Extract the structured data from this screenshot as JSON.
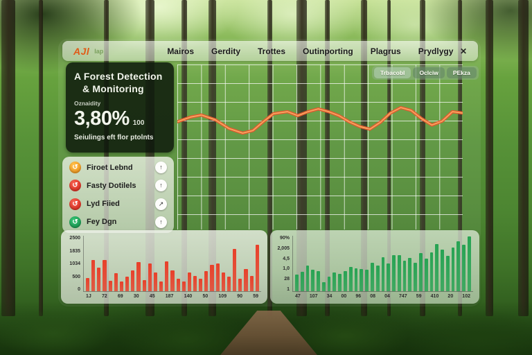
{
  "navbar": {
    "logo": "AJl",
    "logo_suffix": "Iap",
    "items": [
      "Mairos",
      "Gerdity",
      "Trottes",
      "Outinporting",
      "Plagrus",
      "Prydlygy"
    ],
    "close_label": "✕"
  },
  "info_panel": {
    "title_line1": "A Forest Detection",
    "title_line2": "& Monitoring",
    "metric_label": "Oznaidity",
    "metric_value": "3,80%",
    "metric_unit": "100",
    "subtext": "Seiulings eft flor ptolnts"
  },
  "legend": {
    "items": [
      {
        "label": "Firoet Lebnd",
        "color": "#ef8f12",
        "icon": "↺",
        "action": "↑"
      },
      {
        "label": "Fasty Dotilels",
        "color": "#d92318",
        "icon": "↺",
        "action": "↑"
      },
      {
        "label": "Lyd Fiied",
        "color": "#d92318",
        "icon": "↺",
        "action": "↗"
      },
      {
        "label": "Fey Dgn",
        "color": "#14904a",
        "icon": "↺",
        "action": "↑"
      }
    ]
  },
  "main_chart": {
    "buttons": [
      "Trbacobl",
      "Oclciw",
      "PEkza"
    ]
  },
  "chart_data": [
    {
      "id": "trend",
      "type": "line",
      "title": "",
      "color": "#e2582f",
      "highlight_color": "#f5a860",
      "grid": true,
      "legend_position": "none",
      "points": [
        [
          0,
          34.7
        ],
        [
          4.8,
          31.8
        ],
        [
          8.4,
          30.6
        ],
        [
          13.3,
          33.5
        ],
        [
          18.1,
          38.8
        ],
        [
          22.9,
          41.6
        ],
        [
          26.5,
          40.0
        ],
        [
          30.1,
          34.7
        ],
        [
          33.7,
          29.8
        ],
        [
          38.6,
          28.6
        ],
        [
          42.2,
          31.0
        ],
        [
          45.8,
          28.6
        ],
        [
          49.4,
          26.9
        ],
        [
          53.0,
          28.6
        ],
        [
          56.6,
          31.0
        ],
        [
          60.2,
          34.7
        ],
        [
          63.9,
          37.6
        ],
        [
          67.5,
          39.2
        ],
        [
          71.1,
          35.1
        ],
        [
          74.7,
          29.4
        ],
        [
          78.3,
          26.1
        ],
        [
          81.9,
          27.8
        ],
        [
          85.5,
          32.7
        ],
        [
          89.2,
          36.7
        ],
        [
          92.8,
          34.3
        ],
        [
          96.4,
          28.6
        ],
        [
          100,
          29.4
        ]
      ]
    },
    {
      "id": "fires",
      "type": "bar",
      "color": "#e8402a",
      "ylim": [
        0,
        2500
      ],
      "yticks": [
        "2500",
        "1835",
        "1034",
        "500",
        "0"
      ],
      "xticks": [
        "1J",
        "72",
        "69",
        "30",
        "45",
        "187",
        "140",
        "50",
        "109",
        "90",
        "59"
      ],
      "values": [
        600,
        1400,
        1050,
        1400,
        480,
        800,
        450,
        650,
        950,
        1300,
        500,
        1250,
        850,
        450,
        1350,
        950,
        550,
        450,
        850,
        700,
        550,
        900,
        1200,
        1250,
        850,
        650,
        1900,
        550,
        1000,
        700,
        2100
      ]
    },
    {
      "id": "growth",
      "type": "bar",
      "color": "#27a353",
      "ylim": [
        0,
        3000
      ],
      "yticks": [
        "90%",
        "2,005",
        "4,5",
        "1,0",
        "28",
        "1"
      ],
      "xticks": [
        "47",
        "107",
        "34",
        "00",
        "96",
        "08",
        "04",
        "747",
        "59",
        "410",
        "20",
        "102"
      ],
      "values": [
        900,
        1050,
        1400,
        1150,
        1100,
        500,
        800,
        1000,
        950,
        1100,
        1300,
        1250,
        1200,
        1150,
        1550,
        1400,
        1850,
        1500,
        1950,
        1950,
        1650,
        1800,
        1550,
        2050,
        1750,
        2100,
        2550,
        2250,
        1900,
        2350,
        2700,
        2500,
        2950
      ]
    }
  ]
}
